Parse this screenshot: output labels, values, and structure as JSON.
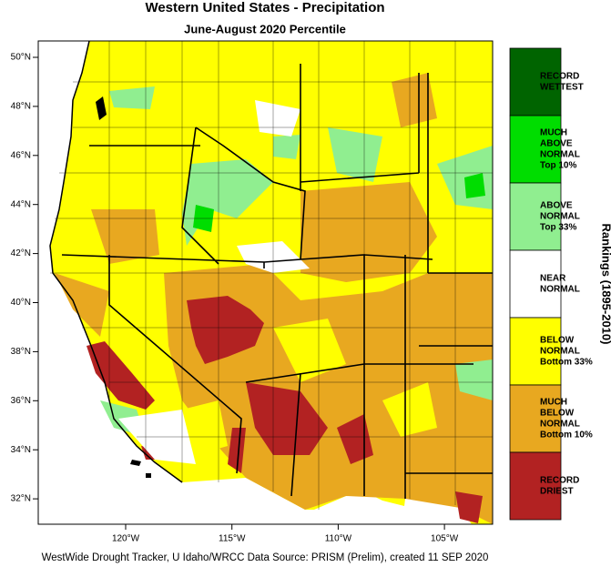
{
  "title": "Western United States - Precipitation",
  "subtitle": "June-August 2020 Percentile",
  "latitude_labels": [
    "50°N",
    "48°N",
    "46°N",
    "44°N",
    "42°N",
    "40°N",
    "38°N",
    "36°N",
    "34°N",
    "32°N"
  ],
  "longitude_labels": [
    "120°W",
    "115°W",
    "110°W",
    "105°W"
  ],
  "legend": {
    "title": "Rankings (1895-2010)",
    "items": [
      {
        "label": [
          "RECORD",
          "WETTEST"
        ],
        "color": "#006400"
      },
      {
        "label": [
          "MUCH",
          "ABOVE",
          "NORMAL",
          "Top 10%"
        ],
        "color": "#00dd00"
      },
      {
        "label": [
          "ABOVE",
          "NORMAL",
          "Top 33%"
        ],
        "color": "#90ee90"
      },
      {
        "label": [
          "NEAR",
          "NORMAL"
        ],
        "color": "#ffffff"
      },
      {
        "label": [
          "BELOW",
          "NORMAL",
          "Bottom 33%"
        ],
        "color": "#ffff00"
      },
      {
        "label": [
          "MUCH",
          "BELOW",
          "NORMAL",
          "Bottom 10%"
        ],
        "color": "#e8a820"
      },
      {
        "label": [
          "RECORD",
          "DRIEST"
        ],
        "color": "#b22222"
      }
    ]
  },
  "footer": "WestWide Drought Tracker, U Idaho/WRCC Data Source: PRISM (Prelim), created 11 SEP 2020"
}
